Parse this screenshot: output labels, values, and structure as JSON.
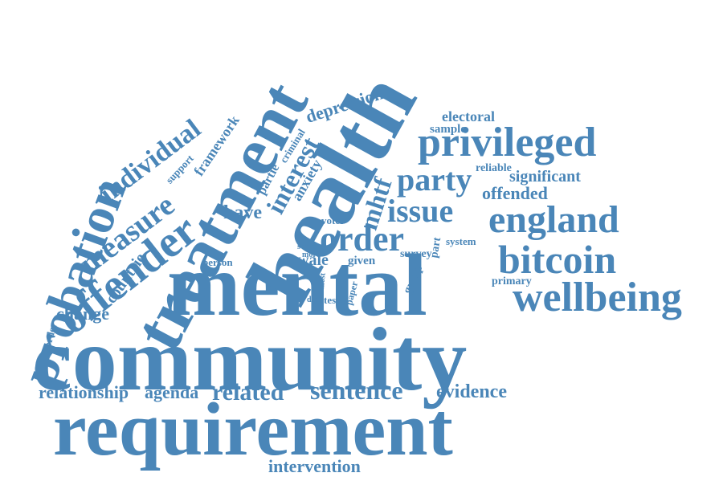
{
  "color": "#4a86b8",
  "words": [
    "community",
    "requirement",
    "mental",
    "health",
    "treatment",
    "probation",
    "offender",
    "wellbeing",
    "privileged",
    "england",
    "bitcoin",
    "issue",
    "order",
    "party",
    "measure",
    "individual",
    "sentence",
    "evidence",
    "relationship",
    "agenda",
    "related",
    "intervention",
    "interest",
    "have",
    "mhtf",
    "depression",
    "change",
    "countrie",
    "framework",
    "offended",
    "significant",
    "electoral",
    "sample",
    "reliable",
    "anxiety",
    "partie",
    "criminal",
    "support",
    "wale",
    "given",
    "person",
    "primary",
    "disorder",
    "system",
    "voter",
    "group",
    "survey",
    "part",
    "scale",
    "more",
    "distr",
    "test",
    "most",
    "paper",
    "size"
  ]
}
